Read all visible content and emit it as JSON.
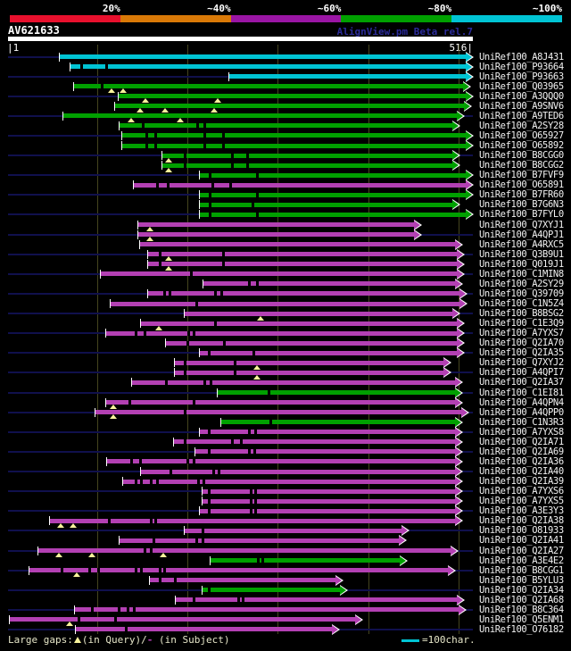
{
  "header": {
    "title": "AV621633",
    "watermark": "AlignView.pm Beta rel.7",
    "scale_left": "|1",
    "scale_right": "516|",
    "key_labels": [
      "20%",
      "~40%",
      "~60%",
      "~80%",
      "~100%"
    ],
    "key_colors": [
      "#e8102d",
      "#d97907",
      "#9a15a4",
      "#00a000",
      "#00c4d4"
    ]
  },
  "legend": {
    "prefix": "Large gaps:",
    "query_part": "(in Query)/",
    "dash": "-",
    "subject_part": " (in Subject)",
    "scale_label": "=100char."
  },
  "colors": {
    "cyan": "#00c4d4",
    "green": "#00a000",
    "magenta": "#b340b3",
    "navy_rowline": "#10104d",
    "gridline": "#45451f",
    "query_bar": "#ffffff",
    "gap_triangle": "#f7f29b",
    "label_text": "#f2f2f2"
  },
  "chart_data": {
    "type": "alignment-overview",
    "title": "AV621633",
    "query_length": 516,
    "axis_ticks": [
      1,
      516
    ],
    "gridline_positions": [
      100,
      200,
      300,
      400,
      500
    ],
    "score_key": [
      {
        "label": "20%",
        "color": "#e8102d"
      },
      {
        "label": "~40%",
        "color": "#d97907"
      },
      {
        "label": "~60%",
        "color": "#9a15a4"
      },
      {
        "label": "~80%",
        "color": "#00a000"
      },
      {
        "label": "~100%",
        "color": "#00c4d4"
      }
    ],
    "columns": [
      "label",
      "color",
      "start",
      "end",
      "query_gaps",
      "subject_gaps"
    ],
    "rows": [
      [
        "UniRef100_A8J431",
        "cyan",
        58,
        516,
        [],
        []
      ],
      [
        "UniRef100_P93664",
        "cyan",
        70,
        516,
        [],
        [
          82,
          110
        ]
      ],
      [
        "UniRef100_P93663",
        "cyan",
        246,
        516,
        [],
        []
      ],
      [
        "UniRef100_Q03965",
        "green",
        74,
        513,
        [
          116,
          129
        ],
        [
          105
        ]
      ],
      [
        "UniRef100_A3QQQ0",
        "green",
        124,
        516,
        [
          153,
          233
        ],
        []
      ],
      [
        "UniRef100_A9SNV6",
        "green",
        120,
        514,
        [
          147,
          175,
          229
        ],
        []
      ],
      [
        "UniRef100_A9TED6",
        "green",
        62,
        506,
        [
          137,
          192
        ],
        []
      ],
      [
        "UniRef100_A2SY28",
        "green",
        125,
        501,
        [],
        [
          150,
          211,
          218
        ]
      ],
      [
        "UniRef100_O65927",
        "green",
        128,
        516,
        [],
        [
          154,
          164,
          218,
          239
        ]
      ],
      [
        "UniRef100_O65892",
        "green",
        128,
        516,
        [],
        [
          154,
          164,
          218,
          239
        ]
      ],
      [
        "UniRef100_B8CGG0",
        "green",
        172,
        501,
        [
          179
        ],
        [
          197,
          249,
          266
        ]
      ],
      [
        "UniRef100_B8CGG2",
        "green",
        172,
        501,
        [
          179
        ],
        [
          197,
          249,
          266
        ]
      ],
      [
        "UniRef100_B7FVF9",
        "green",
        214,
        516,
        [],
        [
          224,
          277
        ]
      ],
      [
        "UniRef100_O65891",
        "magenta",
        140,
        516,
        [],
        [
          166,
          178,
          227,
          247
        ]
      ],
      [
        "UniRef100_B7FR60",
        "green",
        214,
        516,
        [],
        [
          224,
          277
        ]
      ],
      [
        "UniRef100_B7G6N3",
        "green",
        214,
        501,
        [],
        [
          224,
          272
        ]
      ],
      [
        "UniRef100_B7FYL0",
        "green",
        214,
        516,
        [],
        [
          224,
          277
        ]
      ],
      [
        "UniRef100_Q7XYJ1",
        "magenta",
        145,
        459,
        [
          158
        ],
        []
      ],
      [
        "UniRef100_A4QPJ1",
        "magenta",
        145,
        459,
        [
          158
        ],
        []
      ],
      [
        "UniRef100_A4RXC5",
        "magenta",
        147,
        504,
        [],
        []
      ],
      [
        "UniRef100_Q3B9U1",
        "magenta",
        156,
        506,
        [
          179
        ],
        [
          169,
          239
        ]
      ],
      [
        "UniRef100_Q019J1",
        "magenta",
        156,
        506,
        [
          179
        ],
        [
          169,
          239
        ]
      ],
      [
        "UniRef100_C1MIN8",
        "magenta",
        104,
        506,
        [],
        [
          204
        ]
      ],
      [
        "UniRef100_A2SY29",
        "magenta",
        217,
        504,
        [],
        [
          268,
          277
        ]
      ],
      [
        "UniRef100_Q39709",
        "magenta",
        156,
        509,
        [],
        [
          174,
          180,
          230,
          237
        ]
      ],
      [
        "UniRef100_C1N5Z4",
        "magenta",
        115,
        509,
        [],
        [
          210
        ]
      ],
      [
        "UniRef100_B8BSG2",
        "magenta",
        197,
        501,
        [
          281
        ],
        []
      ],
      [
        "UniRef100_C1E3Q9",
        "magenta",
        148,
        506,
        [
          168
        ],
        [
          230
        ]
      ],
      [
        "UniRef100_A7YXS7",
        "magenta",
        110,
        506,
        [],
        [
          142,
          152,
          201,
          207
        ]
      ],
      [
        "UniRef100_Q2IA70",
        "magenta",
        176,
        506,
        [],
        [
          200,
          240
        ]
      ],
      [
        "UniRef100_Q2IA35",
        "magenta",
        214,
        506,
        [],
        [
          223,
          273
        ]
      ],
      [
        "UniRef100_Q7XYJ2",
        "magenta",
        186,
        491,
        [
          277
        ],
        [
          197,
          252
        ]
      ],
      [
        "UniRef100_A4QPI7",
        "magenta",
        186,
        491,
        [
          277
        ],
        [
          197,
          252
        ]
      ],
      [
        "UniRef100_Q2IA37",
        "magenta",
        138,
        504,
        [],
        [
          176,
          218,
          225
        ]
      ],
      [
        "UniRef100_C1EI81",
        "green",
        233,
        504,
        [],
        [
          290
        ]
      ],
      [
        "UniRef100_A4QPN4",
        "magenta",
        110,
        504,
        [
          118
        ],
        [
          135,
          207
        ]
      ],
      [
        "UniRef100_A4QPP0",
        "magenta",
        98,
        511,
        [
          118
        ],
        [
          197
        ]
      ],
      [
        "UniRef100_C1N3R3",
        "green",
        237,
        504,
        [],
        [
          292
        ]
      ],
      [
        "UniRef100_A7YXS8",
        "magenta",
        214,
        504,
        [],
        [
          223,
          268,
          275
        ]
      ],
      [
        "UniRef100_Q2IA71",
        "magenta",
        185,
        504,
        [],
        [
          197,
          249,
          259
        ]
      ],
      [
        "UniRef100_Q2IA69",
        "magenta",
        209,
        504,
        [],
        [
          223,
          268,
          274
        ]
      ],
      [
        "UniRef100_Q2IA36",
        "magenta",
        111,
        504,
        [],
        [
          137,
          147,
          200,
          207
        ]
      ],
      [
        "UniRef100_Q2IA40",
        "magenta",
        148,
        504,
        [],
        [
          181,
          228,
          234
        ]
      ],
      [
        "UniRef100_Q2IA39",
        "magenta",
        129,
        504,
        [],
        [
          142,
          148,
          159,
          166,
          212,
          217
        ]
      ],
      [
        "UniRef100_A7YXS6",
        "magenta",
        216,
        504,
        [],
        [
          223,
          270,
          275
        ]
      ],
      [
        "UniRef100_A7YXS5",
        "magenta",
        216,
        504,
        [],
        [
          223,
          270,
          275
        ]
      ],
      [
        "UniRef100_A3E3Y3",
        "magenta",
        214,
        504,
        [],
        [
          223,
          270,
          275
        ]
      ],
      [
        "UniRef100_Q2IA38",
        "magenta",
        47,
        504,
        [
          59,
          73
        ],
        [
          113,
          159,
          164
        ]
      ],
      [
        "UniRef100_O81933",
        "magenta",
        197,
        445,
        [],
        [
          216
        ]
      ],
      [
        "UniRef100_Q2IA41",
        "magenta",
        125,
        442,
        [],
        [
          162,
          210,
          216
        ]
      ],
      [
        "UniRef100_Q2IA27",
        "magenta",
        35,
        499,
        [
          57,
          94,
          173
        ],
        [
          152,
          159
        ]
      ],
      [
        "UniRef100_A3E4E2",
        "green",
        225,
        443,
        [],
        [
          278,
          283
        ]
      ],
      [
        "UniRef100_B8CGG1",
        "magenta",
        25,
        496,
        [
          77
        ],
        [
          60,
          91,
          101,
          142,
          148,
          169,
          174
        ]
      ],
      [
        "UniRef100_B5YLU3",
        "magenta",
        158,
        372,
        [],
        [
          169,
          186
        ]
      ],
      [
        "UniRef100_Q2IA34",
        "green",
        216,
        377,
        [],
        [
          223
        ]
      ],
      [
        "UniRef100_Q2IA68",
        "magenta",
        187,
        506,
        [],
        [
          207,
          256,
          261
        ]
      ],
      [
        "UniRef100_B8C364",
        "magenta",
        75,
        508,
        [],
        [
          94,
          124,
          133,
          140
        ]
      ],
      [
        "UniRef100_Q5ENM1",
        "magenta",
        3,
        393,
        [
          69
        ],
        [
          79,
          120
        ]
      ],
      [
        "UniRef100_O76182",
        "magenta",
        76,
        368,
        [],
        [
          131
        ]
      ]
    ]
  }
}
